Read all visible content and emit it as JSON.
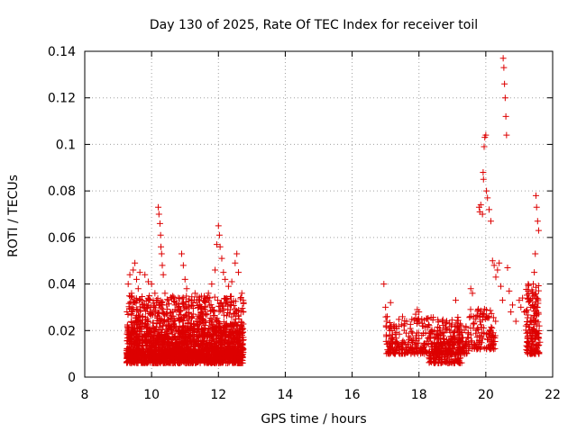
{
  "chart_data": {
    "type": "scatter",
    "title": "Day 130 of 2025, Rate Of TEC Index for receiver toil",
    "xlabel": "GPS time / hours",
    "ylabel": "ROTI / TECUs",
    "xlim": [
      8,
      22
    ],
    "ylim": [
      0,
      0.14
    ],
    "xticks": [
      8,
      10,
      12,
      14,
      16,
      18,
      20,
      22
    ],
    "yticks": [
      0,
      0.02,
      0.04,
      0.06,
      0.08,
      0.1,
      0.12,
      0.14
    ],
    "ytick_labels": [
      "0",
      "0.02",
      "0.04",
      "0.06",
      "0.08",
      "0.1",
      "0.12",
      "0.14"
    ],
    "grid": true,
    "marker": "+",
    "color": "#dd0000",
    "series": [
      {
        "name": "ROTI",
        "points": [
          [
            9.3,
            0.04
          ],
          [
            9.35,
            0.044
          ],
          [
            9.4,
            0.036
          ],
          [
            9.45,
            0.046
          ],
          [
            9.5,
            0.049
          ],
          [
            9.55,
            0.042
          ],
          [
            9.6,
            0.038
          ],
          [
            9.65,
            0.045
          ],
          [
            9.7,
            0.033
          ],
          [
            9.75,
            0.031
          ],
          [
            9.8,
            0.044
          ],
          [
            9.9,
            0.041
          ],
          [
            10.0,
            0.04
          ],
          [
            10.1,
            0.036
          ],
          [
            10.15,
            0.032
          ],
          [
            10.2,
            0.073
          ],
          [
            10.22,
            0.07
          ],
          [
            10.25,
            0.066
          ],
          [
            10.27,
            0.061
          ],
          [
            10.28,
            0.056
          ],
          [
            10.3,
            0.053
          ],
          [
            10.32,
            0.048
          ],
          [
            10.35,
            0.044
          ],
          [
            10.4,
            0.036
          ],
          [
            10.45,
            0.031
          ],
          [
            10.5,
            0.033
          ],
          [
            10.6,
            0.034
          ],
          [
            10.7,
            0.031
          ],
          [
            10.8,
            0.029
          ],
          [
            10.9,
            0.053
          ],
          [
            10.95,
            0.048
          ],
          [
            11.0,
            0.042
          ],
          [
            11.05,
            0.038
          ],
          [
            11.1,
            0.031
          ],
          [
            11.2,
            0.033
          ],
          [
            11.3,
            0.036
          ],
          [
            11.4,
            0.03
          ],
          [
            11.5,
            0.028
          ],
          [
            11.6,
            0.032
          ],
          [
            11.7,
            0.036
          ],
          [
            11.8,
            0.04
          ],
          [
            11.9,
            0.046
          ],
          [
            11.95,
            0.057
          ],
          [
            12.0,
            0.065
          ],
          [
            12.03,
            0.061
          ],
          [
            12.05,
            0.056
          ],
          [
            12.1,
            0.051
          ],
          [
            12.15,
            0.045
          ],
          [
            12.2,
            0.042
          ],
          [
            12.3,
            0.039
          ],
          [
            12.4,
            0.041
          ],
          [
            12.5,
            0.049
          ],
          [
            12.55,
            0.053
          ],
          [
            12.6,
            0.045
          ],
          [
            12.7,
            0.036
          ],
          [
            12.75,
            0.032
          ],
          [
            16.95,
            0.04
          ],
          [
            17.0,
            0.03
          ],
          [
            17.05,
            0.026
          ],
          [
            17.1,
            0.021
          ],
          [
            17.15,
            0.032
          ],
          [
            17.2,
            0.017
          ],
          [
            17.3,
            0.015
          ],
          [
            17.4,
            0.013
          ],
          [
            17.5,
            0.012
          ],
          [
            17.6,
            0.014
          ],
          [
            17.7,
            0.016
          ],
          [
            17.8,
            0.015
          ],
          [
            17.9,
            0.027
          ],
          [
            17.95,
            0.029
          ],
          [
            18.0,
            0.028
          ],
          [
            18.1,
            0.022
          ],
          [
            18.2,
            0.019
          ],
          [
            18.3,
            0.017
          ],
          [
            18.4,
            0.013
          ],
          [
            18.5,
            0.011
          ],
          [
            18.6,
            0.018
          ],
          [
            18.7,
            0.024
          ],
          [
            18.8,
            0.021
          ],
          [
            18.9,
            0.016
          ],
          [
            19.0,
            0.012
          ],
          [
            19.1,
            0.033
          ],
          [
            19.2,
            0.022
          ],
          [
            19.3,
            0.017
          ],
          [
            19.4,
            0.015
          ],
          [
            19.5,
            0.014
          ],
          [
            19.55,
            0.038
          ],
          [
            19.6,
            0.036
          ],
          [
            19.7,
            0.025
          ],
          [
            19.75,
            0.021
          ],
          [
            19.8,
            0.073
          ],
          [
            19.82,
            0.071
          ],
          [
            19.85,
            0.074
          ],
          [
            19.9,
            0.07
          ],
          [
            19.92,
            0.088
          ],
          [
            19.93,
            0.085
          ],
          [
            19.95,
            0.099
          ],
          [
            19.97,
            0.103
          ],
          [
            20.0,
            0.104
          ],
          [
            20.02,
            0.08
          ],
          [
            20.05,
            0.077
          ],
          [
            20.1,
            0.072
          ],
          [
            20.15,
            0.067
          ],
          [
            20.2,
            0.05
          ],
          [
            20.25,
            0.048
          ],
          [
            20.3,
            0.043
          ],
          [
            20.35,
            0.046
          ],
          [
            20.4,
            0.049
          ],
          [
            20.45,
            0.039
          ],
          [
            20.5,
            0.033
          ],
          [
            20.52,
            0.137
          ],
          [
            20.54,
            0.133
          ],
          [
            20.56,
            0.126
          ],
          [
            20.58,
            0.12
          ],
          [
            20.6,
            0.112
          ],
          [
            20.62,
            0.104
          ],
          [
            20.65,
            0.047
          ],
          [
            20.7,
            0.037
          ],
          [
            20.75,
            0.028
          ],
          [
            20.8,
            0.031
          ],
          [
            20.9,
            0.024
          ],
          [
            21.0,
            0.033
          ],
          [
            21.05,
            0.03
          ],
          [
            21.1,
            0.034
          ],
          [
            21.15,
            0.028
          ],
          [
            21.2,
            0.022
          ],
          [
            21.25,
            0.017
          ],
          [
            21.3,
            0.014
          ],
          [
            21.35,
            0.012
          ],
          [
            21.4,
            0.036
          ],
          [
            21.42,
            0.04
          ],
          [
            21.45,
            0.045
          ],
          [
            21.48,
            0.053
          ],
          [
            21.5,
            0.078
          ],
          [
            21.52,
            0.073
          ],
          [
            21.55,
            0.067
          ],
          [
            21.58,
            0.063
          ],
          [
            21.6,
            0.022
          ],
          [
            21.62,
            0.015
          ]
        ]
      }
    ]
  }
}
